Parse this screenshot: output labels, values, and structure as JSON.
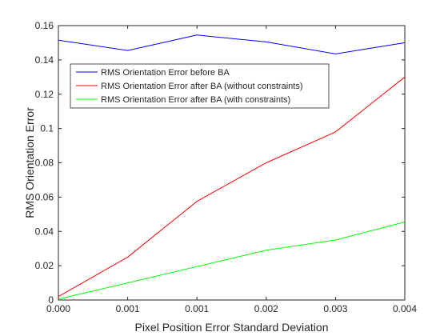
{
  "chart_data": {
    "type": "line",
    "title": "",
    "xlabel": "Pixel Position Error Standard Deviation",
    "ylabel": "RMS Orientation Error",
    "x": [
      0,
      1,
      2,
      3,
      4,
      5
    ],
    "x_tick_labels": [
      "0.000",
      "0.001",
      "0.001",
      "0.002",
      "0.003",
      "0.004"
    ],
    "xlim": [
      0,
      5
    ],
    "ylim": [
      0,
      0.16
    ],
    "y_ticks": [
      0,
      0.02,
      0.04,
      0.06,
      0.08,
      0.1,
      0.12,
      0.14,
      0.16
    ],
    "y_tick_labels": [
      "0",
      "0.02",
      "0.04",
      "0.06",
      "0.08",
      "0.1",
      "0.12",
      "0.14",
      "0.16"
    ],
    "grid": false,
    "legend_position": "upper-left",
    "series": [
      {
        "name": "RMS Orientation Error before BA",
        "color": "#0000ff",
        "values": [
          0.1515,
          0.1455,
          0.1545,
          0.1505,
          0.1435,
          0.15
        ]
      },
      {
        "name": "RMS Orientation Error after BA (without constraints)",
        "color": "#ff0000",
        "values": [
          0.002,
          0.025,
          0.0575,
          0.08,
          0.098,
          0.13
        ]
      },
      {
        "name": "RMS Orientation Error after BA (with constraints)",
        "color": "#00ff00",
        "values": [
          0.0005,
          0.01,
          0.0195,
          0.029,
          0.035,
          0.0455
        ]
      }
    ]
  }
}
